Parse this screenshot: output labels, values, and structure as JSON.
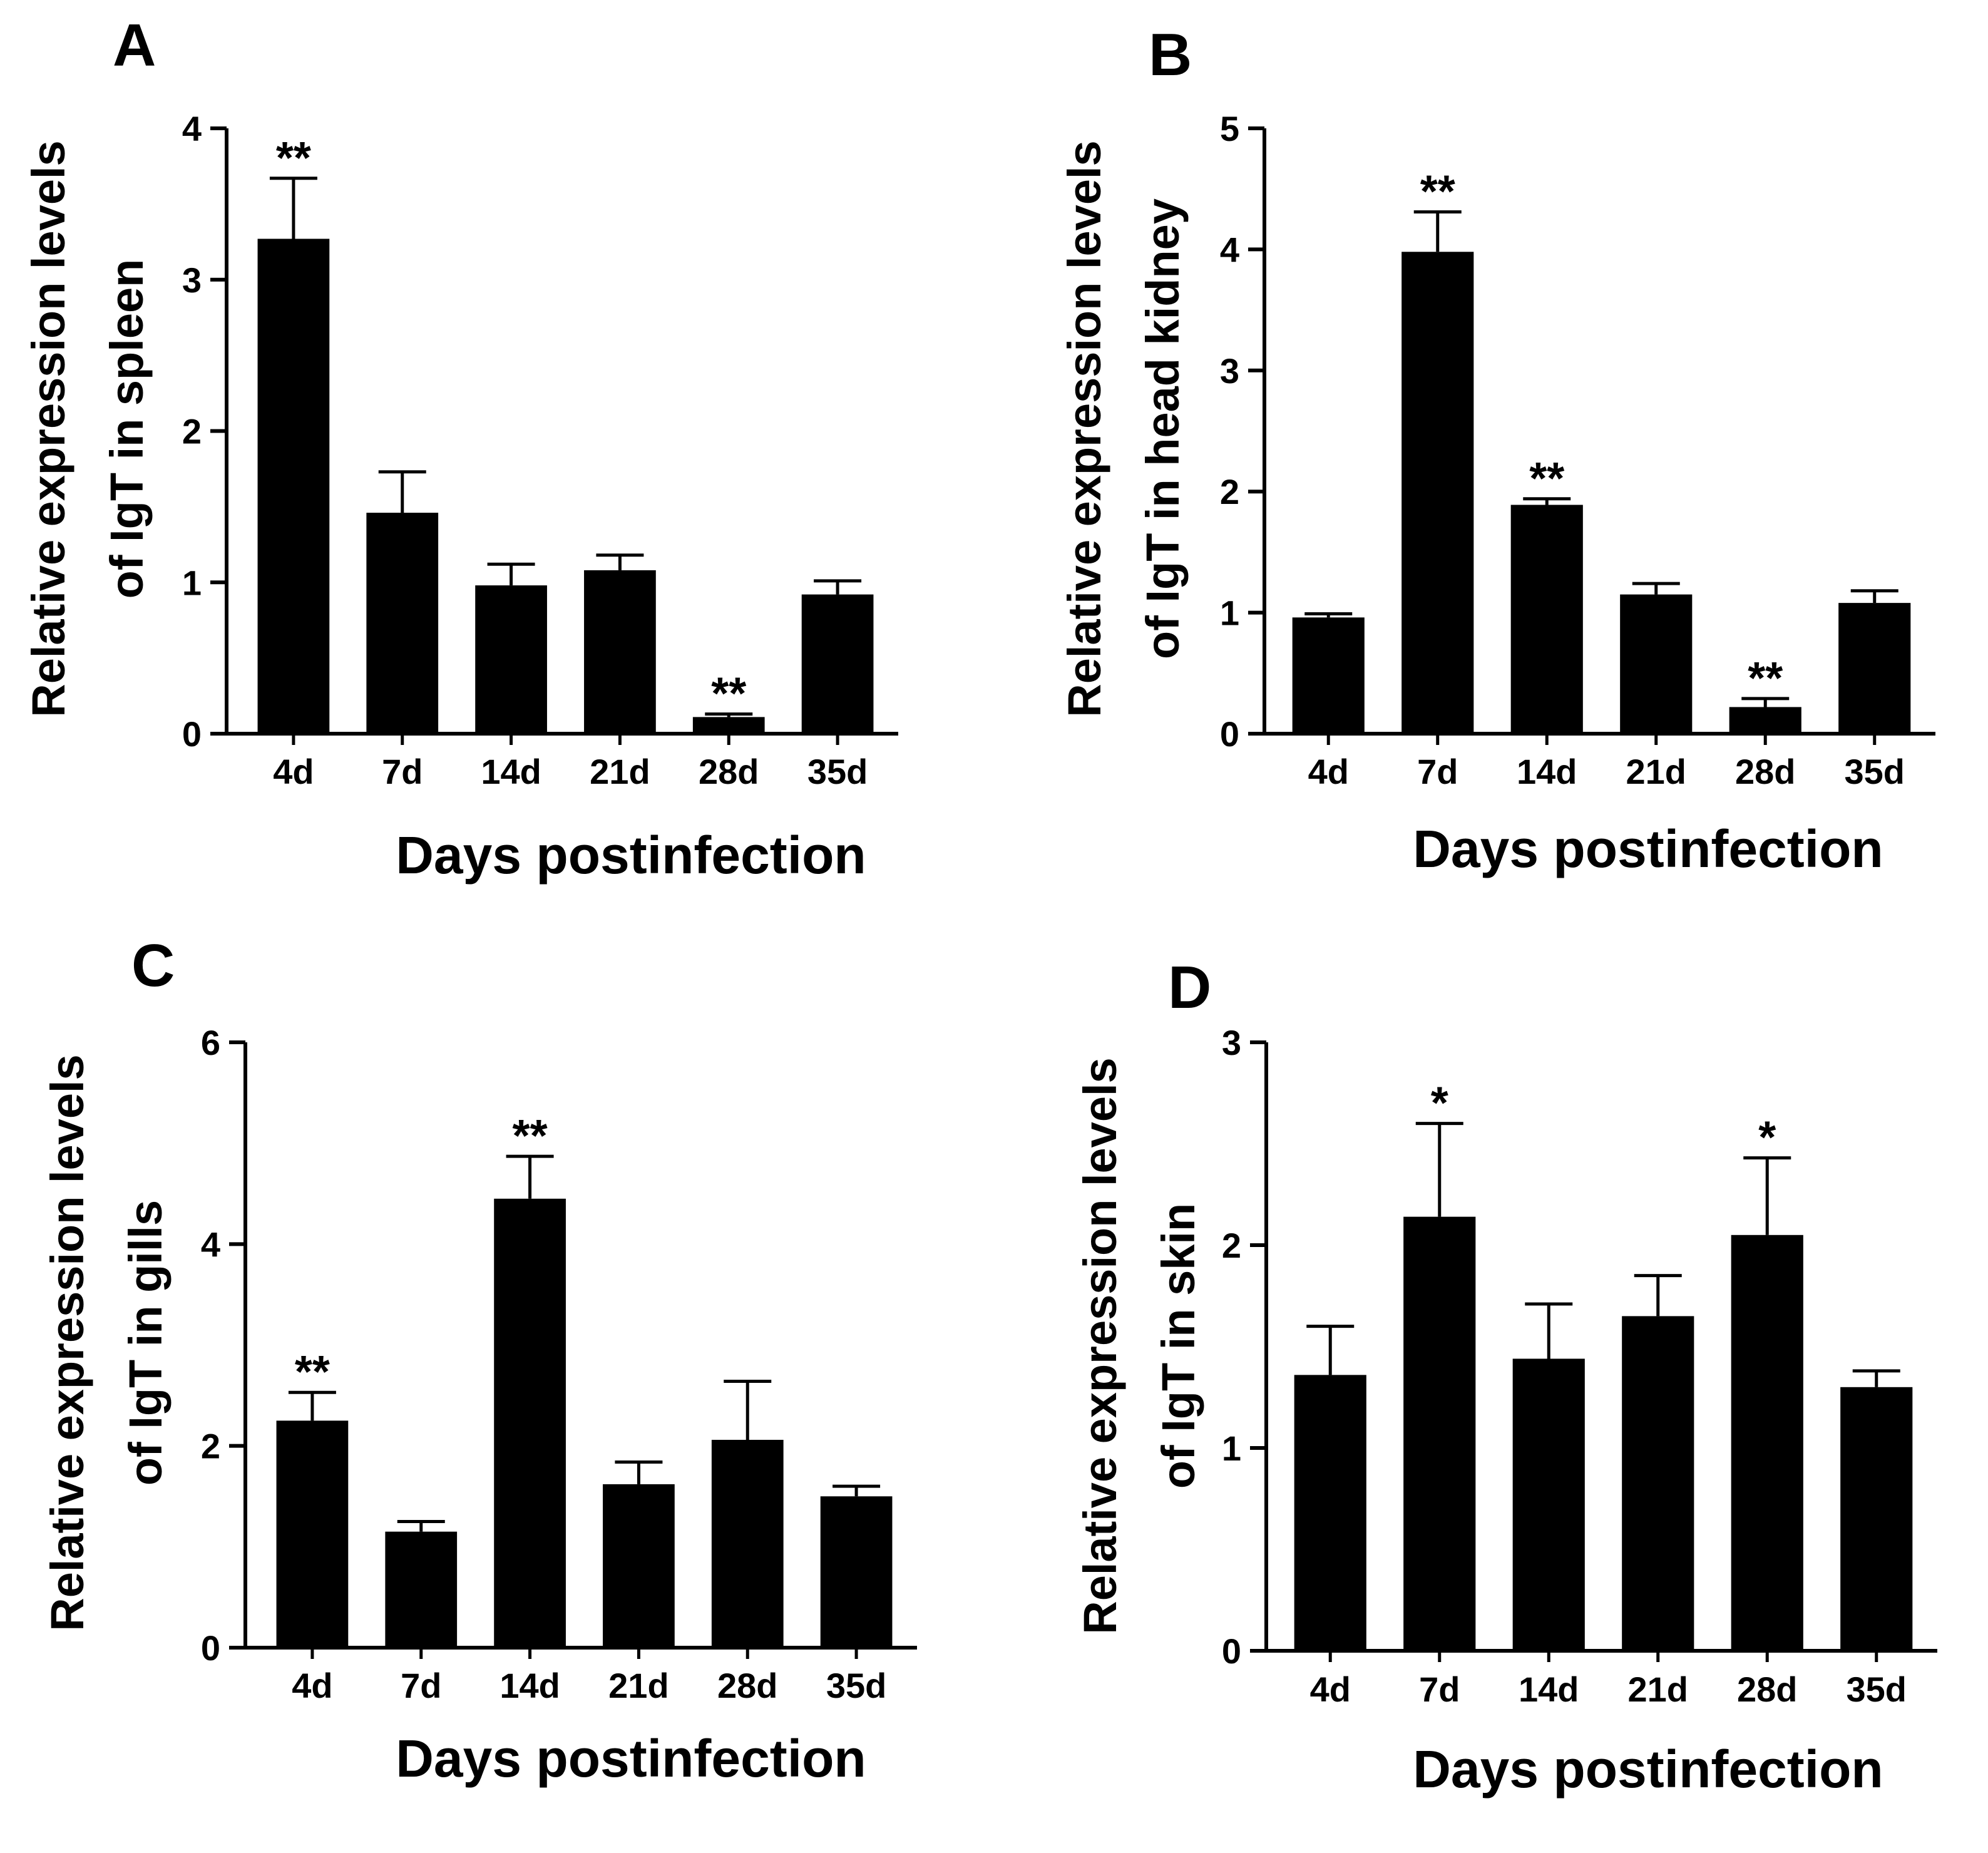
{
  "chart_data": [
    {
      "type": "bar",
      "panel_label": "A",
      "categories": [
        "4d",
        "7d",
        "14d",
        "21d",
        "28d",
        "35d"
      ],
      "values": [
        3.27,
        1.46,
        0.98,
        1.08,
        0.11,
        0.92
      ],
      "errors": [
        0.4,
        0.27,
        0.14,
        0.1,
        0.02,
        0.09
      ],
      "significance": [
        "**",
        "",
        "",
        "",
        "**",
        ""
      ],
      "yticks": [
        "0",
        "1",
        "2",
        "3",
        "4"
      ],
      "ylim": [
        0,
        4
      ],
      "ylabel_line1": "Relative expression levels",
      "ylabel_line2": "of IgT in spleen",
      "xlabel": "Days postinfection",
      "bar_color": "#000000"
    },
    {
      "type": "bar",
      "panel_label": "B",
      "categories": [
        "4d",
        "7d",
        "14d",
        "21d",
        "28d",
        "35d"
      ],
      "values": [
        0.96,
        3.98,
        1.89,
        1.15,
        0.22,
        1.08
      ],
      "errors": [
        0.03,
        0.33,
        0.05,
        0.09,
        0.07,
        0.1
      ],
      "significance": [
        "",
        "**",
        "**",
        "",
        "**",
        ""
      ],
      "yticks": [
        "0",
        "1",
        "2",
        "3",
        "4",
        "5"
      ],
      "ylim": [
        0,
        5
      ],
      "ylabel_line1": "Relative expression levels",
      "ylabel_line2": "of IgT in head kidney",
      "xlabel": "Days postinfection",
      "bar_color": "#000000"
    },
    {
      "type": "bar",
      "panel_label": "C",
      "categories": [
        "4d",
        "7d",
        "14d",
        "21d",
        "28d",
        "35d"
      ],
      "values": [
        2.25,
        1.15,
        4.45,
        1.62,
        2.06,
        1.5
      ],
      "errors": [
        0.28,
        0.1,
        0.42,
        0.22,
        0.58,
        0.1
      ],
      "significance": [
        "**",
        "",
        "**",
        "",
        "",
        ""
      ],
      "yticks": [
        "0",
        "2",
        "4",
        "6"
      ],
      "ylim": [
        0,
        6
      ],
      "ylabel_line1": "Relative expression levels",
      "ylabel_line2": "of IgT in gills",
      "xlabel": "Days postinfection",
      "bar_color": "#000000"
    },
    {
      "type": "bar",
      "panel_label": "D",
      "categories": [
        "4d",
        "7d",
        "14d",
        "21d",
        "28d",
        "35d"
      ],
      "values": [
        1.36,
        2.14,
        1.44,
        1.65,
        2.05,
        1.3
      ],
      "errors": [
        0.24,
        0.46,
        0.27,
        0.2,
        0.38,
        0.08
      ],
      "significance": [
        "",
        "*",
        "",
        "",
        "*",
        ""
      ],
      "yticks": [
        "0",
        "1",
        "2",
        "3"
      ],
      "ylim": [
        0,
        3
      ],
      "ylabel_line1": "Relative expression levels",
      "ylabel_line2": "of IgT in skin",
      "xlabel": "Days postinfection",
      "bar_color": "#000000"
    }
  ]
}
